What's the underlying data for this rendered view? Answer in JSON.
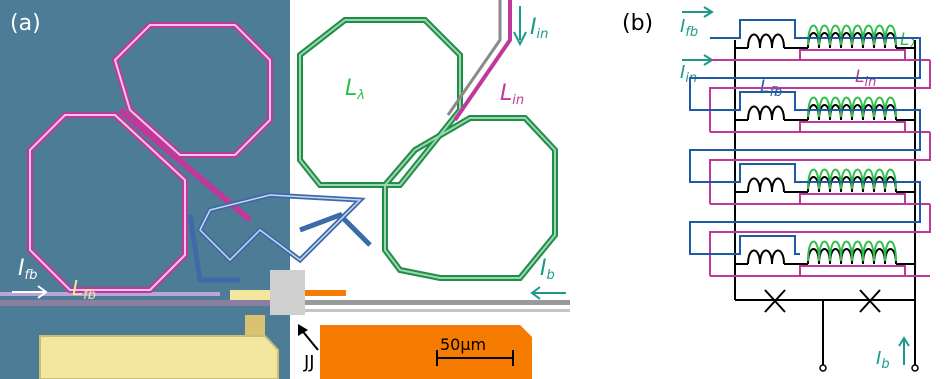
{
  "panel_a": {
    "label": "(a)",
    "label_I_in": "I",
    "label_I_in_sub": "in",
    "label_L_lambda": "L",
    "label_L_lambda_sub": "λ",
    "label_L_in": "L",
    "label_L_in_sub": "in",
    "label_I_fb": "I",
    "label_I_fb_sub": "fb",
    "label_L_fb": "L",
    "label_L_fb_sub": "fb",
    "label_I_b": "I",
    "label_I_b_sub": "b",
    "label_JJ": "JJ",
    "scale_bar": "50μm",
    "colors": {
      "substrate_blue": "#4d7c97",
      "substrate_white": "#ffffff",
      "pad_yellow": "#f3e7a0",
      "pad_orange": "#f57c00",
      "coil_pink": "#c0399a",
      "coil_green": "#1f8f48",
      "coil_blue": "#3d6aa8",
      "text_teal": "#1b9a8a"
    }
  },
  "panel_b": {
    "label": "(b)",
    "label_I_fb": "I",
    "label_I_fb_sub": "fb",
    "label_I_in": "I",
    "label_I_in_sub": "in",
    "label_L_fb": "L",
    "label_L_fb_sub": "fb",
    "label_L_in": "L",
    "label_L_in_sub": "in",
    "label_L_lambda": "L",
    "label_L_lambda_sub": "λ",
    "label_I_b": "I",
    "label_I_b_sub": "b",
    "colors": {
      "fb_line": "#1e5aa6",
      "in_line": "#c0399a",
      "lambda_coil": "#2fbf4a",
      "circuit": "#000000",
      "arrow_teal": "#1b9a8a"
    }
  }
}
